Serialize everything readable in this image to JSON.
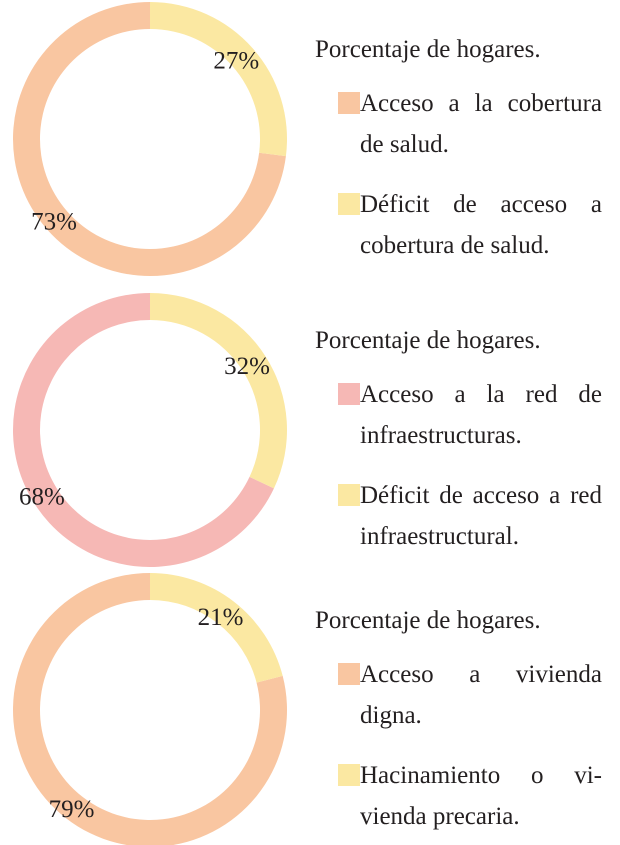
{
  "chart_data": [
    {
      "type": "pie",
      "title": "Porcentaje de hogares.",
      "categories": [
        "Acceso a la cobertu­ra de salud.",
        "Déficit de acceso a cobertura de salud."
      ],
      "values": [
        73,
        27
      ],
      "value_labels": [
        "73%",
        "27%"
      ],
      "colors": [
        "#f9c6a1",
        "#fbe8a2"
      ]
    },
    {
      "type": "pie",
      "title": "Porcentaje de hogares.",
      "categories": [
        "Acceso a la red de infraestructuras.",
        "Déficit de acceso a red infraestructural."
      ],
      "values": [
        68,
        32
      ],
      "value_labels": [
        "68%",
        "32%"
      ],
      "colors": [
        "#f6b8b5",
        "#fbe8a2"
      ]
    },
    {
      "type": "pie",
      "title": "Porcentaje de hogares.",
      "categories": [
        "Acceso a vivienda digna.",
        "Hacinamiento o vi­vienda precaria."
      ],
      "values": [
        79,
        21
      ],
      "value_labels": [
        "79%",
        "21%"
      ],
      "colors": [
        "#f9c6a1",
        "#fbe8a2"
      ]
    }
  ]
}
